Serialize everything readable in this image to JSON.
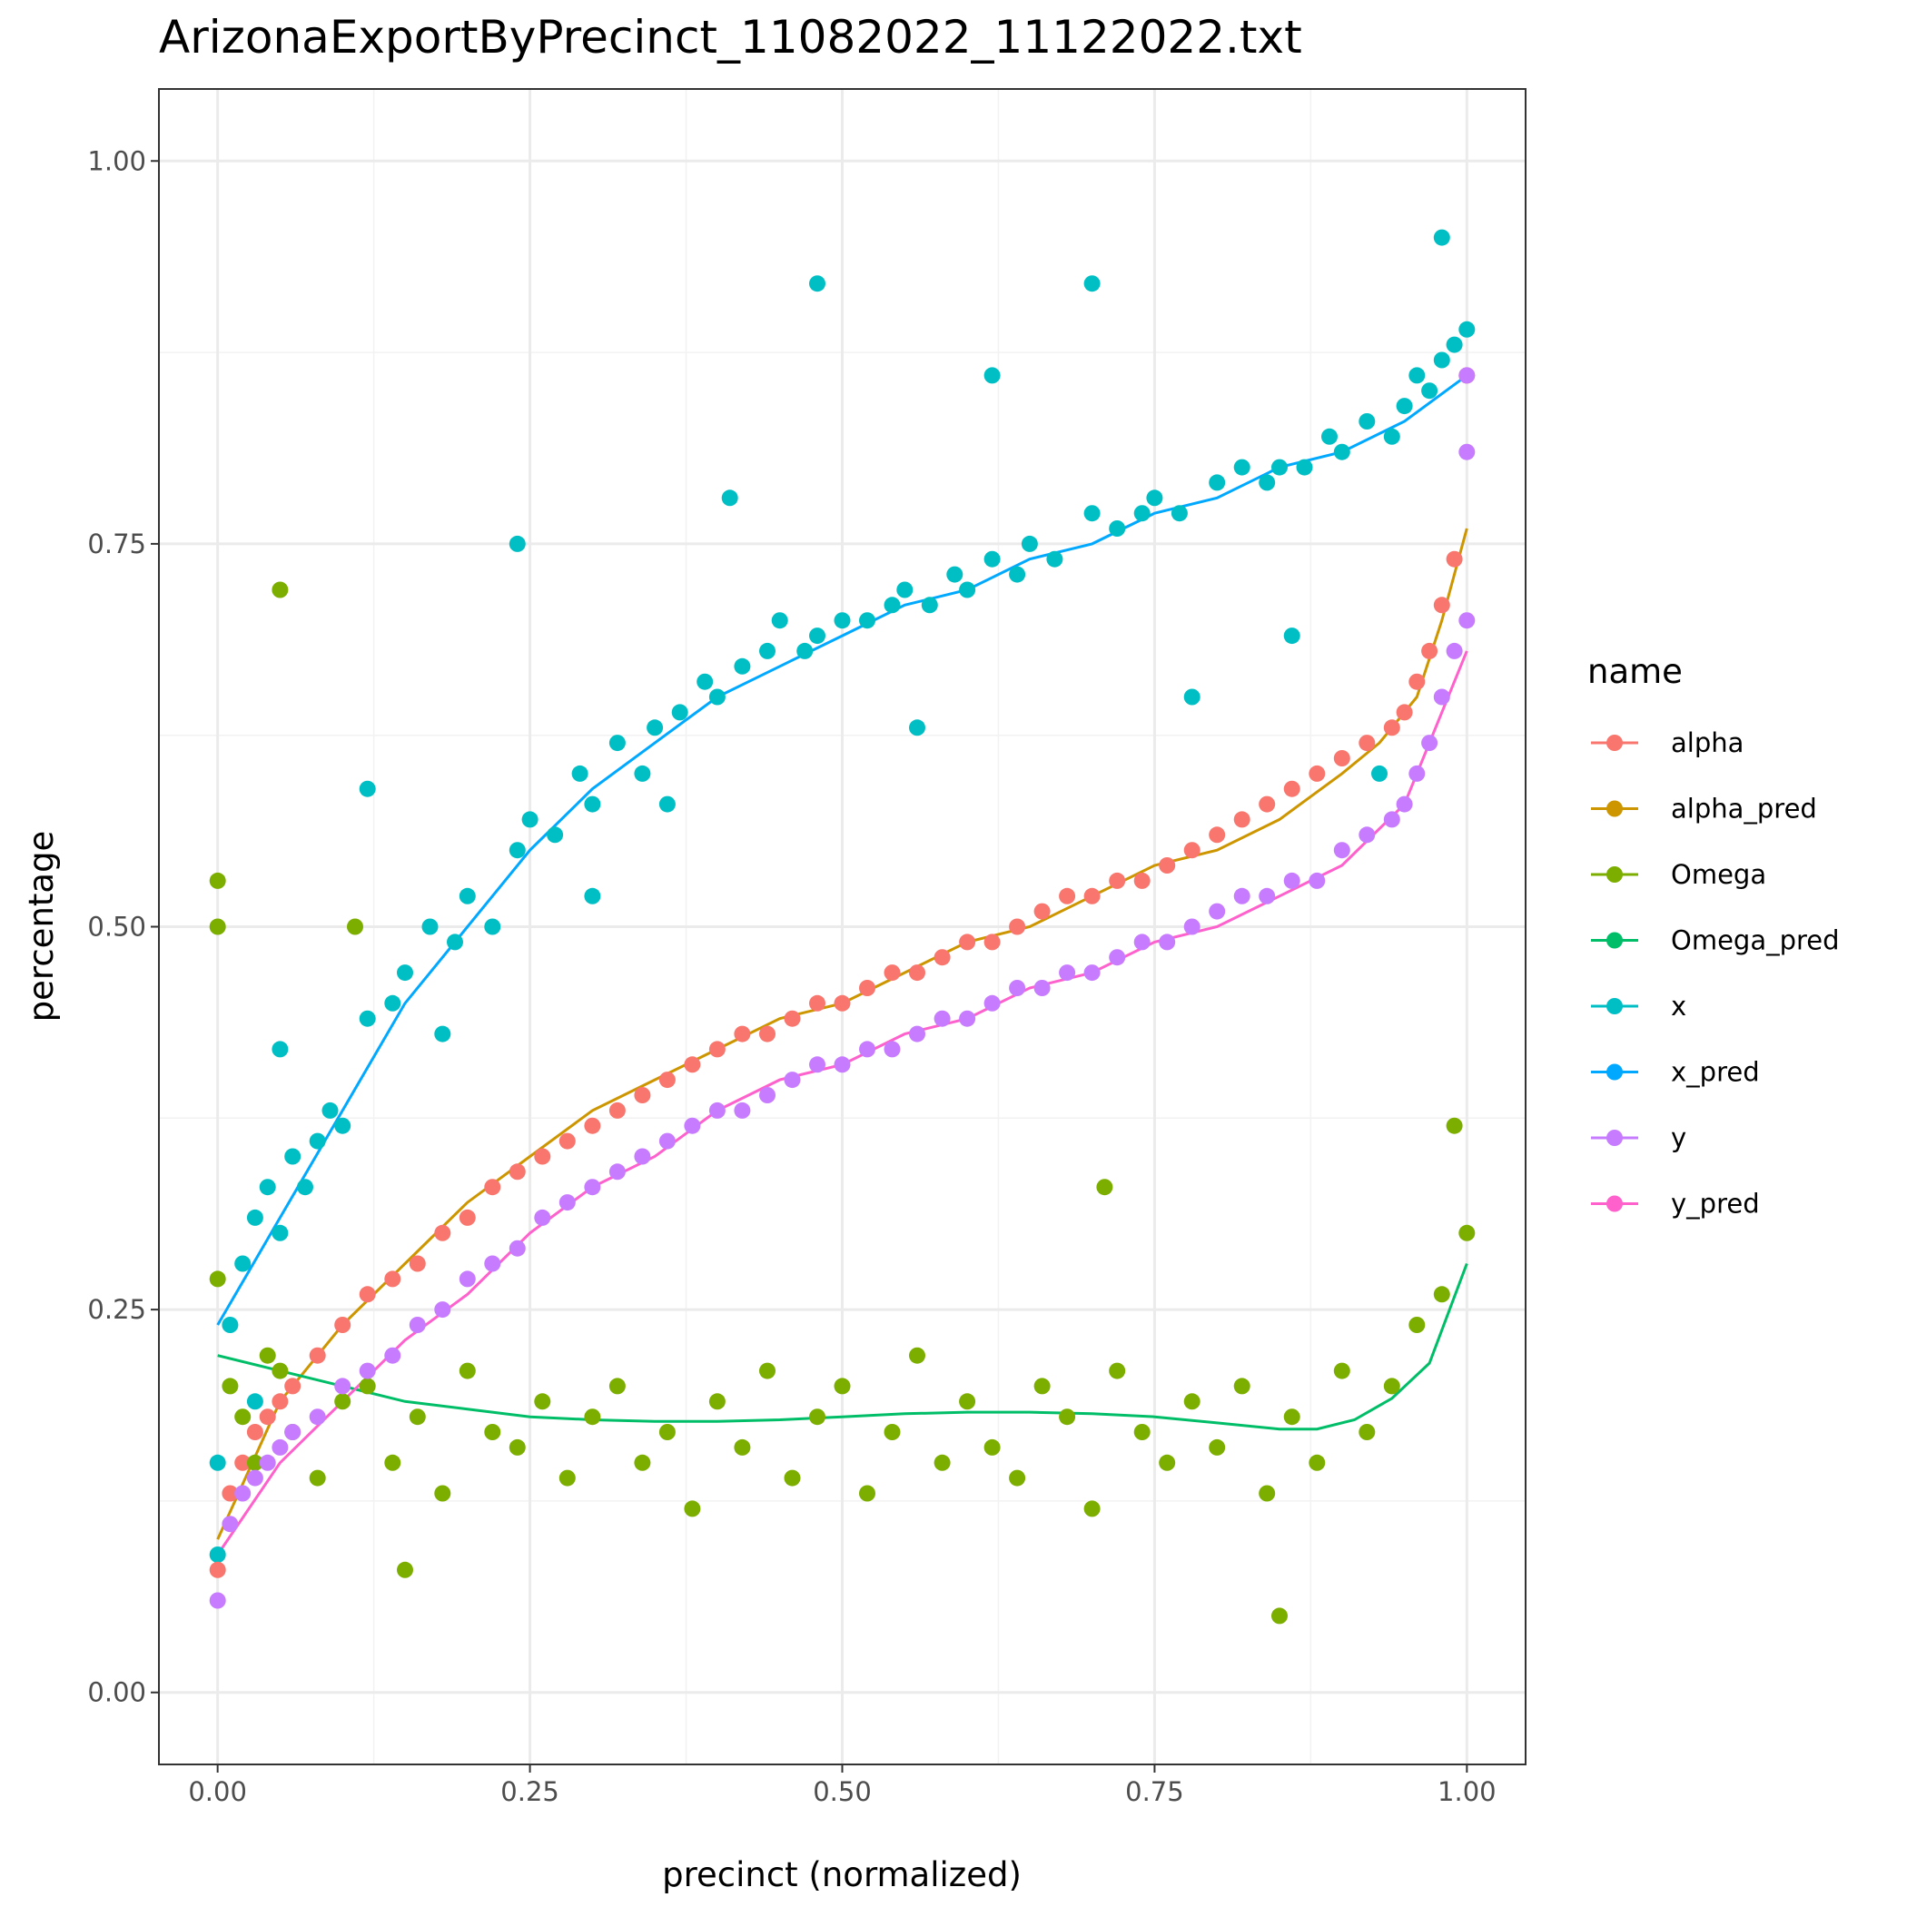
{
  "chart_data": {
    "type": "scatter",
    "title": "ArizonaExportByPrecinct_11082022_11122022.txt",
    "xlabel": "precinct (normalized)",
    "ylabel": "percentage",
    "xlim": [
      -0.047,
      1.047
    ],
    "ylim": [
      -0.047,
      1.047
    ],
    "x_ticks": [
      0.0,
      0.25,
      0.5,
      0.75,
      1.0
    ],
    "x_tick_labels": [
      "0.00",
      "0.25",
      "0.50",
      "0.75",
      "1.00"
    ],
    "y_ticks": [
      0.0,
      0.25,
      0.5,
      0.75,
      1.0
    ],
    "y_tick_labels": [
      "0.00",
      "0.25",
      "0.50",
      "0.75",
      "1.00"
    ],
    "grid": true,
    "legend": {
      "title": "name",
      "position": "right",
      "entries": [
        "alpha",
        "alpha_pred",
        "Omega",
        "Omega_pred",
        "x",
        "x_pred",
        "y",
        "y_pred"
      ]
    },
    "series": [
      {
        "name": "x",
        "kind": "points",
        "color": "#00BFC4",
        "x": [
          0.0,
          0.01,
          0.02,
          0.03,
          0.04,
          0.05,
          0.06,
          0.07,
          0.08,
          0.09,
          0.1,
          0.12,
          0.14,
          0.15,
          0.17,
          0.19,
          0.2,
          0.22,
          0.24,
          0.25,
          0.27,
          0.29,
          0.3,
          0.32,
          0.34,
          0.35,
          0.37,
          0.39,
          0.4,
          0.42,
          0.44,
          0.45,
          0.47,
          0.48,
          0.5,
          0.52,
          0.54,
          0.55,
          0.57,
          0.59,
          0.6,
          0.62,
          0.64,
          0.65,
          0.67,
          0.7,
          0.72,
          0.74,
          0.75,
          0.77,
          0.8,
          0.82,
          0.84,
          0.85,
          0.87,
          0.89,
          0.9,
          0.92,
          0.94,
          0.95,
          0.96,
          0.97,
          0.98,
          0.99,
          1.0,
          0.0,
          0.03,
          0.05,
          0.12,
          0.18,
          0.24,
          0.3,
          0.36,
          0.41,
          0.48,
          0.56,
          0.62,
          0.7,
          0.78,
          0.86,
          0.93,
          0.98
        ],
        "y": [
          0.15,
          0.24,
          0.28,
          0.31,
          0.33,
          0.3,
          0.35,
          0.33,
          0.36,
          0.38,
          0.37,
          0.44,
          0.45,
          0.47,
          0.5,
          0.49,
          0.52,
          0.5,
          0.55,
          0.57,
          0.56,
          0.6,
          0.58,
          0.62,
          0.6,
          0.63,
          0.64,
          0.66,
          0.65,
          0.67,
          0.68,
          0.7,
          0.68,
          0.69,
          0.7,
          0.7,
          0.71,
          0.72,
          0.71,
          0.73,
          0.72,
          0.74,
          0.73,
          0.75,
          0.74,
          0.77,
          0.76,
          0.77,
          0.78,
          0.77,
          0.79,
          0.8,
          0.79,
          0.8,
          0.8,
          0.82,
          0.81,
          0.83,
          0.82,
          0.84,
          0.86,
          0.85,
          0.87,
          0.88,
          0.89,
          0.09,
          0.19,
          0.42,
          0.59,
          0.43,
          0.75,
          0.52,
          0.58,
          0.78,
          0.92,
          0.63,
          0.86,
          0.92,
          0.65,
          0.69,
          0.6,
          0.95
        ]
      },
      {
        "name": "x_pred",
        "kind": "line",
        "color": "#00A9FF",
        "x": [
          0.0,
          0.05,
          0.1,
          0.15,
          0.2,
          0.25,
          0.3,
          0.35,
          0.4,
          0.45,
          0.5,
          0.55,
          0.6,
          0.65,
          0.7,
          0.75,
          0.8,
          0.85,
          0.9,
          0.95,
          1.0
        ],
        "y": [
          0.24,
          0.31,
          0.38,
          0.45,
          0.5,
          0.55,
          0.59,
          0.62,
          0.65,
          0.67,
          0.69,
          0.71,
          0.72,
          0.74,
          0.75,
          0.77,
          0.78,
          0.8,
          0.81,
          0.83,
          0.86
        ]
      },
      {
        "name": "alpha",
        "kind": "points",
        "color": "#F8766D",
        "x": [
          0.0,
          0.01,
          0.02,
          0.03,
          0.04,
          0.05,
          0.06,
          0.08,
          0.1,
          0.12,
          0.14,
          0.16,
          0.18,
          0.2,
          0.22,
          0.24,
          0.26,
          0.28,
          0.3,
          0.32,
          0.34,
          0.36,
          0.38,
          0.4,
          0.42,
          0.44,
          0.46,
          0.48,
          0.5,
          0.52,
          0.54,
          0.56,
          0.58,
          0.6,
          0.62,
          0.64,
          0.66,
          0.68,
          0.7,
          0.72,
          0.74,
          0.76,
          0.78,
          0.8,
          0.82,
          0.84,
          0.86,
          0.88,
          0.9,
          0.92,
          0.94,
          0.95,
          0.96,
          0.97,
          0.98,
          0.99,
          1.0
        ],
        "y": [
          0.08,
          0.13,
          0.15,
          0.17,
          0.18,
          0.19,
          0.2,
          0.22,
          0.24,
          0.26,
          0.27,
          0.28,
          0.3,
          0.31,
          0.33,
          0.34,
          0.35,
          0.36,
          0.37,
          0.38,
          0.39,
          0.4,
          0.41,
          0.42,
          0.43,
          0.43,
          0.44,
          0.45,
          0.45,
          0.46,
          0.47,
          0.47,
          0.48,
          0.49,
          0.49,
          0.5,
          0.51,
          0.52,
          0.52,
          0.53,
          0.53,
          0.54,
          0.55,
          0.56,
          0.57,
          0.58,
          0.59,
          0.6,
          0.61,
          0.62,
          0.63,
          0.64,
          0.66,
          0.68,
          0.71,
          0.74,
          0.86
        ]
      },
      {
        "name": "alpha_pred",
        "kind": "line",
        "color": "#CD9600",
        "x": [
          0.0,
          0.05,
          0.1,
          0.15,
          0.2,
          0.25,
          0.3,
          0.35,
          0.4,
          0.45,
          0.5,
          0.55,
          0.6,
          0.65,
          0.7,
          0.75,
          0.8,
          0.85,
          0.9,
          0.93,
          0.96,
          0.98,
          1.0
        ],
        "y": [
          0.1,
          0.19,
          0.24,
          0.28,
          0.32,
          0.35,
          0.38,
          0.4,
          0.42,
          0.44,
          0.45,
          0.47,
          0.49,
          0.5,
          0.52,
          0.54,
          0.55,
          0.57,
          0.6,
          0.62,
          0.65,
          0.7,
          0.76
        ]
      },
      {
        "name": "Omega",
        "kind": "points",
        "color": "#7CAE00",
        "x": [
          0.0,
          0.01,
          0.02,
          0.03,
          0.04,
          0.05,
          0.06,
          0.08,
          0.1,
          0.12,
          0.14,
          0.16,
          0.18,
          0.2,
          0.22,
          0.24,
          0.26,
          0.28,
          0.3,
          0.32,
          0.34,
          0.36,
          0.38,
          0.4,
          0.42,
          0.44,
          0.46,
          0.48,
          0.5,
          0.52,
          0.54,
          0.56,
          0.58,
          0.6,
          0.62,
          0.64,
          0.66,
          0.68,
          0.7,
          0.72,
          0.74,
          0.76,
          0.78,
          0.8,
          0.82,
          0.84,
          0.86,
          0.88,
          0.9,
          0.92,
          0.94,
          0.96,
          0.98,
          1.0,
          0.0,
          0.0,
          0.05,
          0.11,
          0.15,
          0.71,
          0.85,
          0.99
        ],
        "y": [
          0.27,
          0.2,
          0.18,
          0.15,
          0.22,
          0.21,
          0.17,
          0.14,
          0.19,
          0.2,
          0.15,
          0.18,
          0.13,
          0.21,
          0.17,
          0.16,
          0.19,
          0.14,
          0.18,
          0.2,
          0.15,
          0.17,
          0.12,
          0.19,
          0.16,
          0.21,
          0.14,
          0.18,
          0.2,
          0.13,
          0.17,
          0.22,
          0.15,
          0.19,
          0.16,
          0.14,
          0.2,
          0.18,
          0.12,
          0.21,
          0.17,
          0.15,
          0.19,
          0.16,
          0.2,
          0.13,
          0.18,
          0.15,
          0.21,
          0.17,
          0.2,
          0.24,
          0.26,
          0.3,
          0.5,
          0.53,
          0.72,
          0.5,
          0.08,
          0.33,
          0.05,
          0.37
        ]
      },
      {
        "name": "Omega_pred",
        "kind": "line",
        "color": "#00BE67",
        "x": [
          0.0,
          0.05,
          0.1,
          0.15,
          0.2,
          0.25,
          0.3,
          0.35,
          0.4,
          0.45,
          0.5,
          0.55,
          0.6,
          0.65,
          0.7,
          0.75,
          0.8,
          0.85,
          0.88,
          0.91,
          0.94,
          0.97,
          1.0
        ],
        "y": [
          0.22,
          0.21,
          0.2,
          0.19,
          0.185,
          0.18,
          0.178,
          0.177,
          0.177,
          0.178,
          0.18,
          0.182,
          0.183,
          0.183,
          0.182,
          0.18,
          0.176,
          0.172,
          0.172,
          0.178,
          0.192,
          0.215,
          0.28
        ]
      },
      {
        "name": "y",
        "kind": "points",
        "color": "#C77CFF",
        "x": [
          0.0,
          0.01,
          0.02,
          0.03,
          0.04,
          0.05,
          0.06,
          0.08,
          0.1,
          0.12,
          0.14,
          0.16,
          0.18,
          0.2,
          0.22,
          0.24,
          0.26,
          0.28,
          0.3,
          0.32,
          0.34,
          0.36,
          0.38,
          0.4,
          0.42,
          0.44,
          0.46,
          0.48,
          0.5,
          0.52,
          0.54,
          0.56,
          0.58,
          0.6,
          0.62,
          0.64,
          0.66,
          0.68,
          0.7,
          0.72,
          0.74,
          0.76,
          0.78,
          0.8,
          0.82,
          0.84,
          0.86,
          0.88,
          0.9,
          0.92,
          0.94,
          0.95,
          0.96,
          0.97,
          0.98,
          0.99,
          1.0,
          1.0,
          1.0
        ],
        "y": [
          0.06,
          0.11,
          0.13,
          0.14,
          0.15,
          0.16,
          0.17,
          0.18,
          0.2,
          0.21,
          0.22,
          0.24,
          0.25,
          0.27,
          0.28,
          0.29,
          0.31,
          0.32,
          0.33,
          0.34,
          0.35,
          0.36,
          0.37,
          0.38,
          0.38,
          0.39,
          0.4,
          0.41,
          0.41,
          0.42,
          0.42,
          0.43,
          0.44,
          0.44,
          0.45,
          0.46,
          0.46,
          0.47,
          0.47,
          0.48,
          0.49,
          0.49,
          0.5,
          0.51,
          0.52,
          0.52,
          0.53,
          0.53,
          0.55,
          0.56,
          0.57,
          0.58,
          0.6,
          0.62,
          0.65,
          0.68,
          0.7,
          0.81,
          0.86
        ]
      },
      {
        "name": "y_pred",
        "kind": "line",
        "color": "#FF61CC",
        "x": [
          0.0,
          0.05,
          0.1,
          0.15,
          0.2,
          0.25,
          0.3,
          0.35,
          0.4,
          0.45,
          0.5,
          0.55,
          0.6,
          0.65,
          0.7,
          0.75,
          0.8,
          0.85,
          0.9,
          0.95,
          1.0
        ],
        "y": [
          0.09,
          0.15,
          0.19,
          0.23,
          0.26,
          0.3,
          0.33,
          0.35,
          0.38,
          0.4,
          0.41,
          0.43,
          0.44,
          0.46,
          0.47,
          0.49,
          0.5,
          0.52,
          0.54,
          0.58,
          0.68
        ]
      }
    ]
  }
}
